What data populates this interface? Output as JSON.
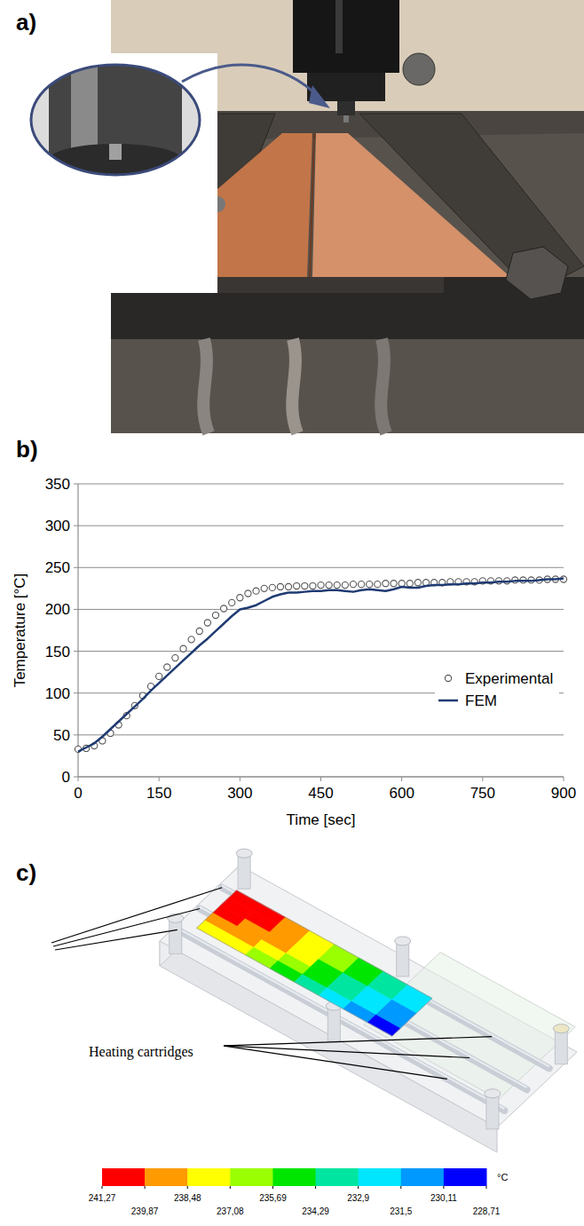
{
  "photo": {
    "panel": "a)"
  },
  "chart_data": [
    {
      "panel": "b)",
      "type": "line",
      "x_label": "Time [sec]",
      "y_label": "Temperature [°C]",
      "x": [
        0,
        15,
        30,
        45,
        60,
        75,
        90,
        105,
        120,
        135,
        150,
        165,
        180,
        195,
        210,
        225,
        240,
        255,
        270,
        285,
        300,
        315,
        330,
        345,
        360,
        375,
        390,
        405,
        420,
        435,
        450,
        465,
        480,
        495,
        510,
        525,
        540,
        555,
        570,
        585,
        600,
        615,
        630,
        645,
        660,
        675,
        690,
        705,
        720,
        735,
        750,
        765,
        780,
        795,
        810,
        825,
        840,
        855,
        870,
        885,
        900
      ],
      "series": [
        {
          "name": "Experimental",
          "type": "scatter",
          "marker": "circle",
          "color": "#555555",
          "values": [
            33,
            34,
            37,
            43,
            52,
            62,
            73,
            85,
            97,
            108,
            120,
            131,
            142,
            153,
            164,
            174,
            184,
            193,
            201,
            208,
            214,
            219,
            222,
            225,
            226,
            227,
            227,
            228,
            228,
            228,
            229,
            229,
            229,
            229,
            230,
            230,
            230,
            230,
            231,
            231,
            231,
            231,
            232,
            232,
            232,
            232,
            233,
            233,
            233,
            233,
            234,
            234,
            234,
            234,
            235,
            235,
            235,
            235,
            236,
            236,
            236
          ]
        },
        {
          "name": "FEM",
          "type": "line",
          "line_style": "solid",
          "color": "#1f3b73",
          "values": [
            30,
            35,
            40,
            48,
            57,
            66,
            75,
            84,
            93,
            103,
            112,
            121,
            130,
            139,
            148,
            157,
            165,
            174,
            183,
            192,
            200,
            202,
            205,
            210,
            215,
            218,
            220,
            220,
            221,
            222,
            222,
            223,
            223,
            222,
            221,
            223,
            224,
            223,
            222,
            224,
            227,
            226,
            226,
            228,
            229,
            229,
            230,
            230,
            231,
            231,
            232,
            232,
            233,
            233,
            234,
            234,
            234,
            235,
            236,
            236,
            237
          ]
        }
      ],
      "xlim": [
        0,
        900
      ],
      "xticks": [
        0,
        150,
        300,
        450,
        600,
        750,
        900
      ],
      "ylim": [
        0,
        350
      ],
      "yticks": [
        0,
        50,
        100,
        150,
        200,
        250,
        300,
        350
      ],
      "grid": true,
      "legend": "right"
    },
    {
      "panel": "c)",
      "type": "contour",
      "annotation": "Heating cartridges",
      "unit": "°C",
      "cells": [
        [
          241.0,
          240.5,
          239.5,
          238.0,
          236.5,
          235.0,
          233.5,
          232.5
        ],
        [
          240.8,
          240.2,
          239.2,
          237.8,
          236.2,
          234.6,
          233.0,
          231.8
        ],
        [
          240.0,
          239.5,
          238.6,
          237.2,
          235.6,
          234.0,
          232.4,
          231.0
        ],
        [
          239.0,
          238.6,
          237.8,
          236.4,
          234.8,
          233.2,
          231.6,
          230.2
        ],
        [
          238.2,
          237.8,
          237.0,
          235.6,
          234.0,
          232.4,
          230.8,
          229.2
        ]
      ],
      "colorbar_ticks": [
        {
          "value": 241.27,
          "label": "241,27"
        },
        {
          "value": 239.87,
          "label": "239,87"
        },
        {
          "value": 238.48,
          "label": "238,48"
        },
        {
          "value": 237.08,
          "label": "237,08"
        },
        {
          "value": 235.69,
          "label": "235,69"
        },
        {
          "value": 234.29,
          "label": "234,29"
        },
        {
          "value": 232.9,
          "label": "232,9"
        },
        {
          "value": 231.5,
          "label": "231,5"
        },
        {
          "value": 230.11,
          "label": "230,11"
        },
        {
          "value": 228.71,
          "label": "228,71"
        }
      ],
      "colors": [
        "#ff0000",
        "#ff9a00",
        "#ffff00",
        "#9aff00",
        "#00e600",
        "#00e6a0",
        "#00e6ff",
        "#0099ff",
        "#0000ff"
      ]
    }
  ]
}
